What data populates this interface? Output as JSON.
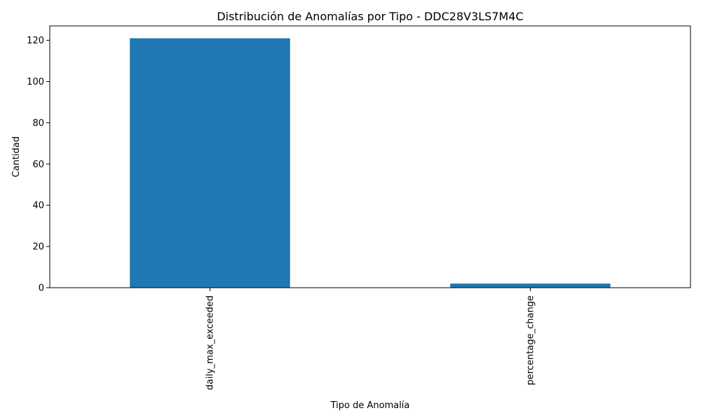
{
  "chart_data": {
    "type": "bar",
    "title": "Distribución de Anomalías por Tipo - DDC28V3LS7M4C",
    "xlabel": "Tipo de Anomalía",
    "ylabel": "Cantidad",
    "categories": [
      "daily_max_exceeded",
      "percentage_change"
    ],
    "values": [
      121,
      2
    ],
    "ylim": [
      0,
      127
    ],
    "yticks": [
      0,
      20,
      40,
      60,
      80,
      100,
      120
    ],
    "bar_color": "#1f77b4",
    "grid": false,
    "legend": "none"
  }
}
